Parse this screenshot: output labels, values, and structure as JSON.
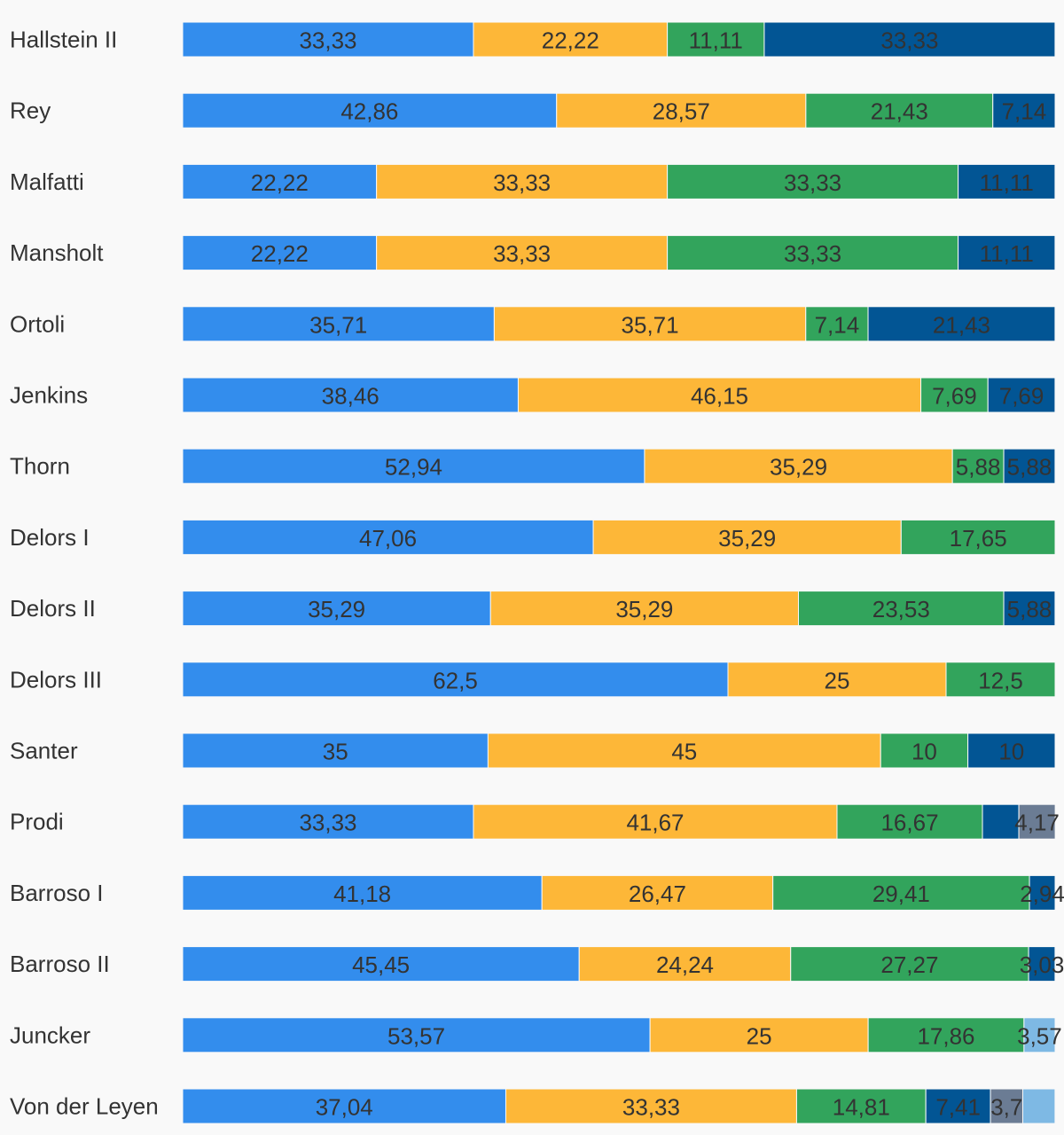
{
  "chart_data": {
    "type": "bar",
    "orientation": "horizontal",
    "stacked": true,
    "normalized_to": 100,
    "legend": "none",
    "grid": false,
    "xlim": [
      0,
      100
    ],
    "series_colors": [
      "#338ded",
      "#fdb738",
      "#32a45c",
      "#025594",
      "#6b7c94",
      "#7eb9e4"
    ],
    "categories": [
      "Hallstein II",
      "Rey",
      "Malfatti",
      "Mansholt",
      "Ortoli",
      "Jenkins",
      "Thorn",
      "Delors I",
      "Delors II",
      "Delors III",
      "Santer",
      "Prodi",
      "Barroso I",
      "Barroso II",
      "Juncker",
      "Von der Leyen"
    ],
    "series": [
      {
        "values": [
          33.33,
          42.86,
          22.22,
          22.22,
          35.71,
          38.46,
          52.94,
          47.06,
          35.29,
          62.5,
          35,
          33.33,
          41.18,
          45.45,
          53.57,
          37.04
        ],
        "labels": [
          "33,33",
          "42,86",
          "22,22",
          "22,22",
          "35,71",
          "38,46",
          "52,94",
          "47,06",
          "35,29",
          "62,5",
          "35",
          "33,33",
          "41,18",
          "45,45",
          "53,57",
          "37,04"
        ]
      },
      {
        "values": [
          22.22,
          28.57,
          33.33,
          33.33,
          35.71,
          46.15,
          35.29,
          35.29,
          35.29,
          25,
          45,
          41.67,
          26.47,
          24.24,
          25,
          33.33
        ],
        "labels": [
          "22,22",
          "28,57",
          "33,33",
          "33,33",
          "35,71",
          "46,15",
          "35,29",
          "35,29",
          "35,29",
          "25",
          "45",
          "41,67",
          "26,47",
          "24,24",
          "25",
          "33,33"
        ]
      },
      {
        "values": [
          11.11,
          21.43,
          33.33,
          33.33,
          7.14,
          7.69,
          5.88,
          17.65,
          23.53,
          12.5,
          10,
          16.67,
          29.41,
          27.27,
          17.86,
          14.81
        ],
        "labels": [
          "11,11",
          "21,43",
          "33,33",
          "33,33",
          "7,14",
          "7,69",
          "5,88",
          "17,65",
          "23,53",
          "12,5",
          "10",
          "16,67",
          "29,41",
          "27,27",
          "17,86",
          "14,81"
        ]
      },
      {
        "values": [
          33.33,
          7.14,
          11.11,
          11.11,
          21.43,
          7.69,
          5.88,
          0,
          5.88,
          0,
          10,
          4.17,
          2.94,
          3.03,
          0,
          7.41
        ],
        "labels": [
          "33,33",
          "7,14",
          "11,11",
          "11,11",
          "21,43",
          "7,69",
          "5,88",
          "",
          "5,88",
          "",
          "10",
          "",
          "2,94",
          "3,03",
          "",
          "7,41"
        ]
      },
      {
        "values": [
          0,
          0,
          0,
          0,
          0,
          0,
          0,
          0,
          0,
          0,
          0,
          4.17,
          0,
          0,
          0,
          3.7
        ],
        "labels": [
          "",
          "",
          "",
          "",
          "",
          "",
          "",
          "",
          "",
          "",
          "",
          "4,17",
          "",
          "",
          "",
          "3,7"
        ]
      },
      {
        "values": [
          0,
          0,
          0,
          0,
          0,
          0,
          0,
          0,
          0,
          0,
          0,
          0,
          0,
          0,
          3.57,
          3.7
        ],
        "labels": [
          "",
          "",
          "",
          "",
          "",
          "",
          "",
          "",
          "",
          "",
          "",
          "",
          "",
          "",
          "3,57",
          ""
        ]
      }
    ]
  }
}
